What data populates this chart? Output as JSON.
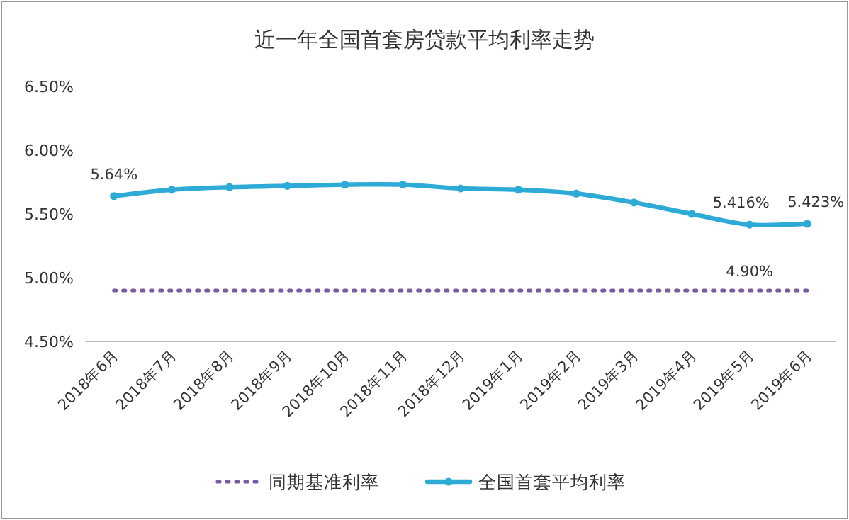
{
  "chart_data": {
    "type": "line",
    "title": "近一年全国首套房贷款平均利率走势",
    "categories": [
      "2018年6月",
      "2018年7月",
      "2018年8月",
      "2018年9月",
      "2018年10月",
      "2018年11月",
      "2018年12月",
      "2019年1月",
      "2019年2月",
      "2019年3月",
      "2019年4月",
      "2019年5月",
      "2019年6月"
    ],
    "series": [
      {
        "name": "同期基准利率",
        "color": "#7a5c9e",
        "line_style": "dotted",
        "marker": "none",
        "values": [
          4.9,
          4.9,
          4.9,
          4.9,
          4.9,
          4.9,
          4.9,
          4.9,
          4.9,
          4.9,
          4.9,
          4.9,
          4.9
        ],
        "value_labels": [
          null,
          null,
          null,
          null,
          null,
          null,
          null,
          null,
          null,
          null,
          null,
          "4.90%",
          null
        ]
      },
      {
        "name": "全国首套平均利率",
        "color": "#2eaad6",
        "line_style": "solid",
        "marker": "circle",
        "values": [
          5.64,
          5.69,
          5.71,
          5.72,
          5.73,
          5.73,
          5.7,
          5.69,
          5.66,
          5.59,
          5.5,
          5.416,
          5.423
        ],
        "value_labels": [
          "5.64%",
          null,
          null,
          null,
          null,
          null,
          null,
          null,
          null,
          null,
          null,
          "5.416%",
          "5.423%"
        ]
      }
    ],
    "ylim": [
      4.5,
      6.5
    ],
    "yticks": [
      {
        "value": 4.5,
        "label": "4.50%"
      },
      {
        "value": 5,
        "label": "5.00%"
      },
      {
        "value": 5.5,
        "label": "5.50%"
      },
      {
        "value": 6,
        "label": "6.00%"
      },
      {
        "value": 6.5,
        "label": "6.50%"
      }
    ],
    "grid": false,
    "legend": "bottom"
  }
}
